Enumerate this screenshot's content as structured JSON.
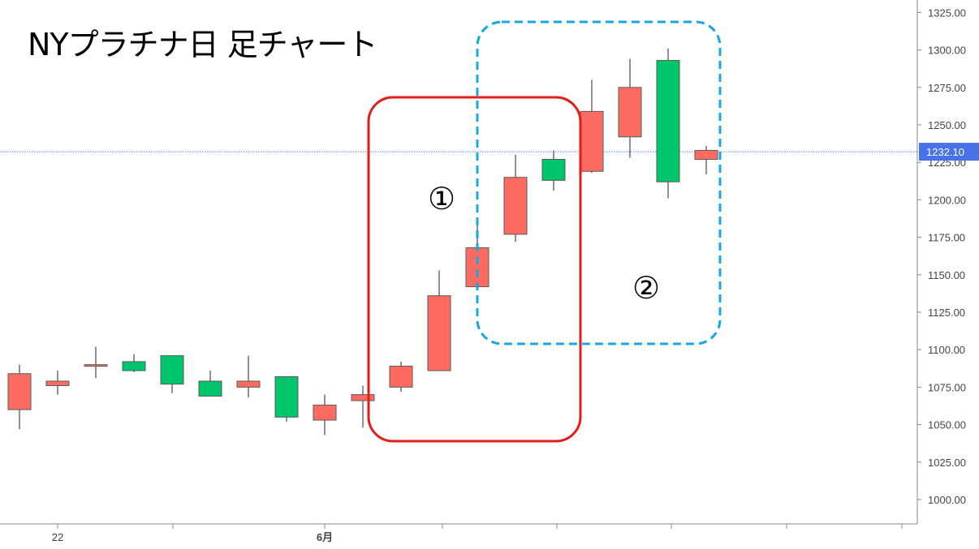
{
  "chart_data": {
    "type": "candlestick",
    "title": "NYプラチナ日 足チャート",
    "y_ticks": [
      1000,
      1025,
      1050,
      1075,
      1100,
      1125,
      1150,
      1175,
      1200,
      1225,
      1250,
      1275,
      1300,
      1325
    ],
    "y_tick_labels": [
      "1000.00",
      "1025.00",
      "1050.00",
      "1075.00",
      "1100.00",
      "1125.00",
      "1150.00",
      "1175.00",
      "1200.00",
      "1225.00",
      "1250.00",
      "1275.00",
      "1300.00",
      "1325.00"
    ],
    "x_labels": [
      {
        "text": "22",
        "bar": 1,
        "bold": false
      },
      {
        "text": "6月",
        "bar": 8,
        "bold": true
      }
    ],
    "current_price": 1232.1,
    "current_price_label": "1232.10",
    "colors": {
      "up": "#ff6b61",
      "down": "#00c66b",
      "wick": "#555555",
      "price_line": "#5b7ee0",
      "price_tag": "#4a72e8",
      "box1": "#e21b1b",
      "box2": "#1aa7e0"
    },
    "candles": [
      {
        "open": 1060,
        "high": 1090,
        "low": 1047,
        "close": 1084
      },
      {
        "open": 1076,
        "high": 1086,
        "low": 1070,
        "close": 1079
      },
      {
        "open": 1089,
        "high": 1102,
        "low": 1081,
        "close": 1090
      },
      {
        "open": 1092,
        "high": 1097,
        "low": 1085,
        "close": 1086
      },
      {
        "open": 1096,
        "high": 1096,
        "low": 1071,
        "close": 1077
      },
      {
        "open": 1079,
        "high": 1086,
        "low": 1069,
        "close": 1069
      },
      {
        "open": 1075,
        "high": 1096,
        "low": 1068,
        "close": 1079
      },
      {
        "open": 1082,
        "high": 1082,
        "low": 1052,
        "close": 1055
      },
      {
        "open": 1053,
        "high": 1070,
        "low": 1043,
        "close": 1063
      },
      {
        "open": 1066,
        "high": 1076,
        "low": 1048,
        "close": 1070
      },
      {
        "open": 1075,
        "high": 1092,
        "low": 1072,
        "close": 1089
      },
      {
        "open": 1086,
        "high": 1153,
        "low": 1086,
        "close": 1136
      },
      {
        "open": 1142,
        "high": 1183,
        "low": 1140,
        "close": 1168
      },
      {
        "open": 1177,
        "high": 1230,
        "low": 1172,
        "close": 1215
      },
      {
        "open": 1227,
        "high": 1233,
        "low": 1206,
        "close": 1213
      },
      {
        "open": 1219,
        "high": 1280,
        "low": 1218,
        "close": 1259
      },
      {
        "open": 1242,
        "high": 1294,
        "low": 1228,
        "close": 1275
      },
      {
        "open": 1293,
        "high": 1301,
        "low": 1201,
        "close": 1212
      },
      {
        "open": 1227,
        "high": 1236,
        "low": 1217,
        "close": 1233
      }
    ],
    "annotations": [
      {
        "label": "①",
        "bars": [
          10,
          14
        ]
      },
      {
        "label": "②",
        "bars": [
          13,
          18
        ]
      }
    ]
  }
}
